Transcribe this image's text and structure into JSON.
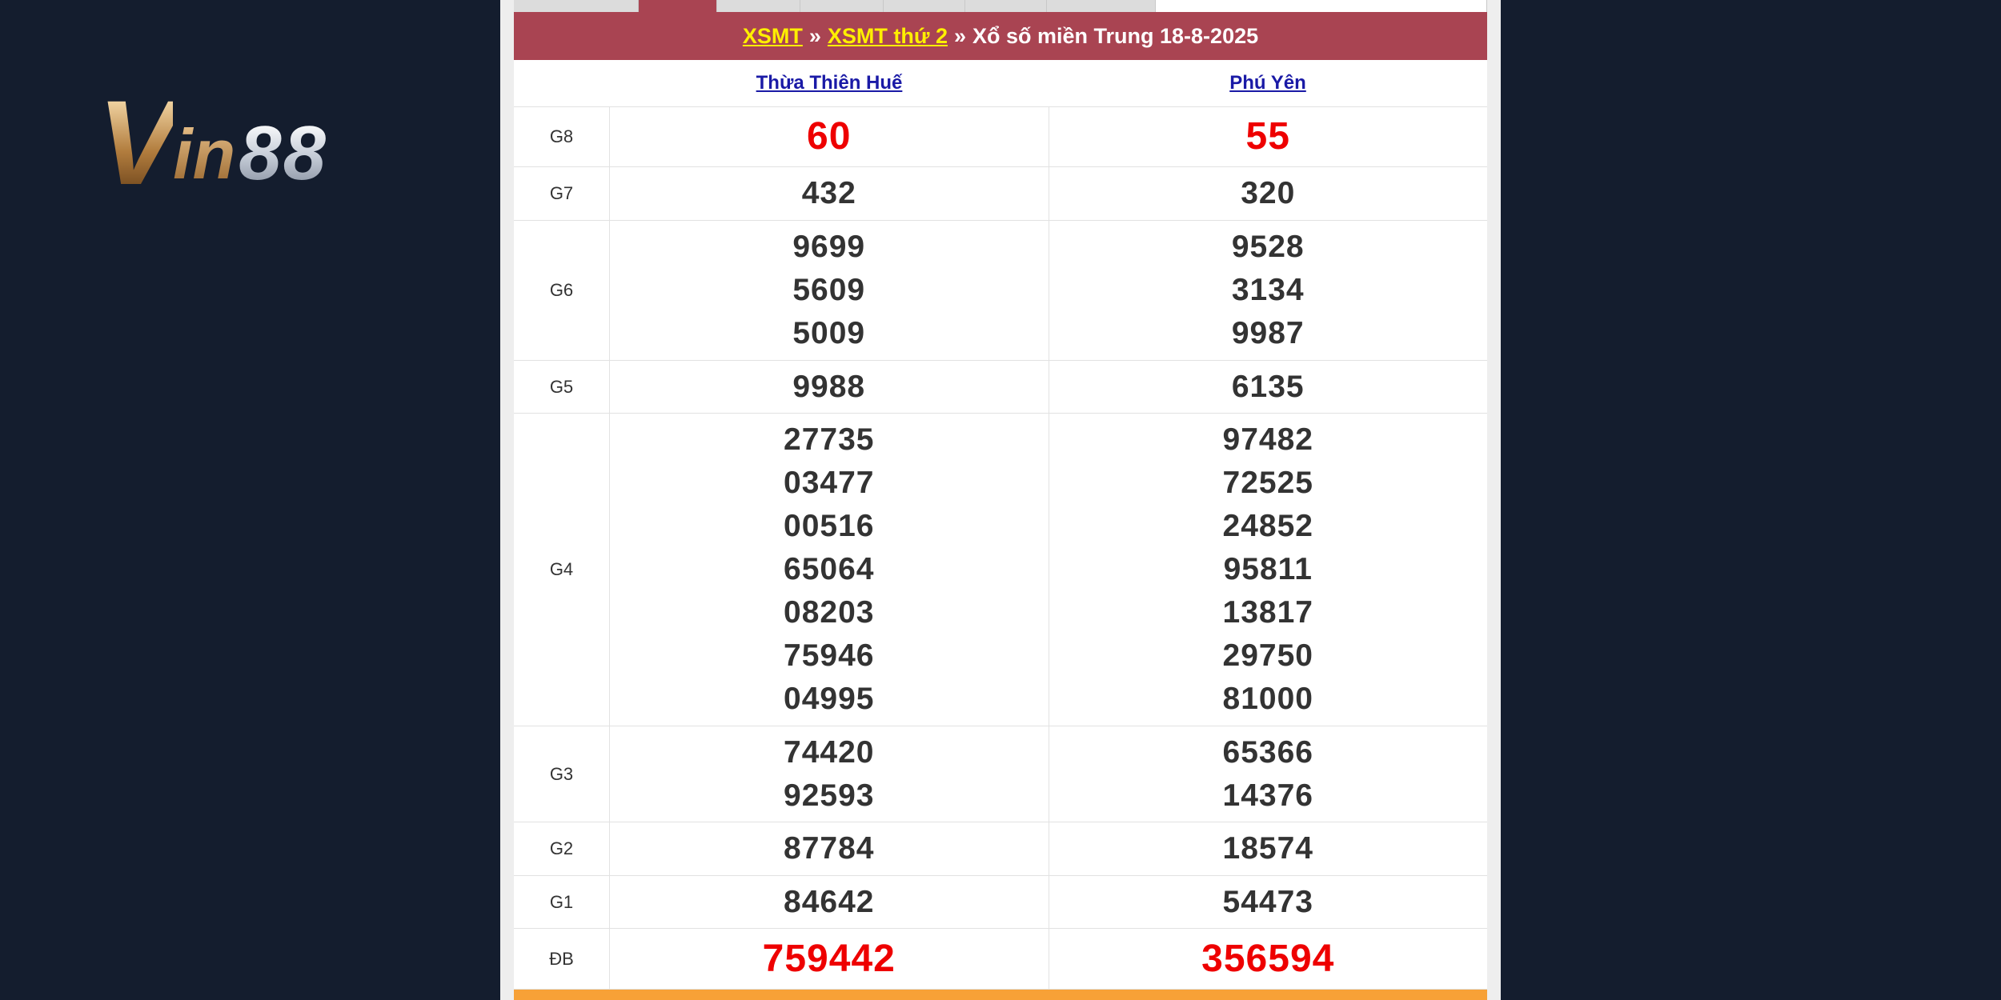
{
  "logo": {
    "text": "Vin88",
    "part1": "V",
    "part2": "in",
    "part3": "88"
  },
  "header": {
    "link1": "XSMT",
    "sep": "»",
    "link2": "XSMT thứ 2",
    "title": "Xổ số miền Trung 18-8-2025"
  },
  "provinces": [
    "Thừa Thiên Huế",
    "Phú Yên"
  ],
  "colors": {
    "header": "#a94452",
    "link": "#ffef00",
    "special": "#ee0000",
    "footer": "#f7a137"
  },
  "prizes": [
    {
      "label": "G8",
      "red": true,
      "values": [
        [
          "60"
        ],
        [
          "55"
        ]
      ]
    },
    {
      "label": "G7",
      "values": [
        [
          "432"
        ],
        [
          "320"
        ]
      ]
    },
    {
      "label": "G6",
      "values": [
        [
          "9699",
          "5609",
          "5009"
        ],
        [
          "9528",
          "3134",
          "9987"
        ]
      ]
    },
    {
      "label": "G5",
      "values": [
        [
          "9988"
        ],
        [
          "6135"
        ]
      ]
    },
    {
      "label": "G4",
      "values": [
        [
          "27735",
          "03477",
          "00516",
          "65064",
          "08203",
          "75946",
          "04995"
        ],
        [
          "97482",
          "72525",
          "24852",
          "95811",
          "13817",
          "29750",
          "81000"
        ]
      ]
    },
    {
      "label": "G3",
      "values": [
        [
          "74420",
          "92593"
        ],
        [
          "65366",
          "14376"
        ]
      ]
    },
    {
      "label": "G2",
      "values": [
        [
          "87784"
        ],
        [
          "18574"
        ]
      ]
    },
    {
      "label": "G1",
      "values": [
        [
          "84642"
        ],
        [
          "54473"
        ]
      ]
    },
    {
      "label": "ĐB",
      "red": true,
      "values": [
        [
          "759442"
        ],
        [
          "356594"
        ]
      ]
    }
  ]
}
